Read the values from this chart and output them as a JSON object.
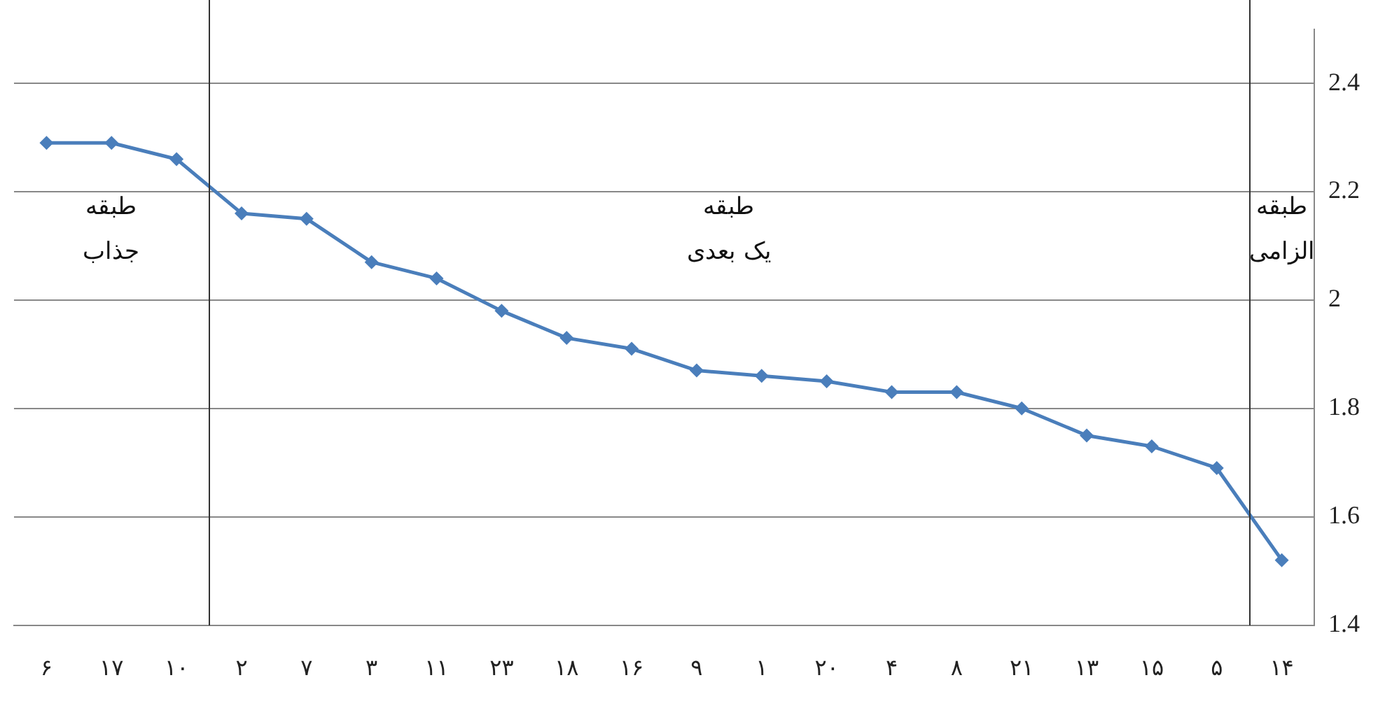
{
  "chart_data": {
    "type": "line",
    "categories": [
      "۶",
      "۱۷",
      "۱۰",
      "۲",
      "۷",
      "۳",
      "۱۱",
      "۲۳",
      "۱۸",
      "۱۶",
      "۹",
      "۱",
      "۲۰",
      "۴",
      "۸",
      "۲۱",
      "۱۳",
      "۱۵",
      "۵",
      "۱۴"
    ],
    "series": [
      {
        "color": "#4a7ebb",
        "values": [
          2.29,
          2.29,
          2.26,
          2.16,
          2.15,
          2.07,
          2.04,
          1.98,
          1.93,
          1.91,
          1.87,
          1.86,
          1.85,
          1.83,
          1.83,
          1.8,
          1.75,
          1.73,
          1.69,
          1.52
        ]
      }
    ],
    "ylim": [
      1.4,
      2.5
    ],
    "yticks": [
      1.4,
      1.6,
      1.8,
      2,
      2.2,
      2.4
    ],
    "grid": "y",
    "legend": false,
    "marker": "diamond",
    "line_style": "solid",
    "annotations": [
      "طبقه\nجذاب",
      "طبقه\nیک بعدی",
      "طبقه\nالزامی"
    ]
  }
}
